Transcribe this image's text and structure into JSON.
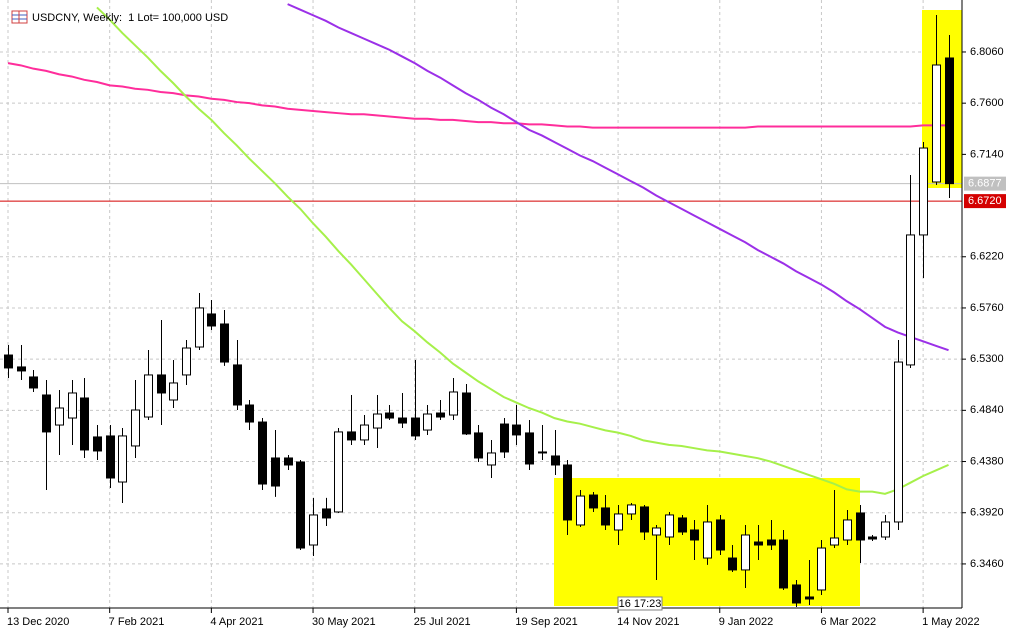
{
  "chart_data": {
    "type": "candlestick",
    "title": "USDCNY, Weekly:  1 Lot= 100,000 USD",
    "timer": "16 17:23",
    "categories": [
      "13 Dec 2020",
      null,
      null,
      null,
      null,
      null,
      null,
      null,
      "7 Feb 2021",
      null,
      null,
      null,
      null,
      null,
      null,
      null,
      "4 Apr 2021",
      null,
      null,
      null,
      null,
      null,
      null,
      null,
      "30 May 2021",
      null,
      null,
      null,
      null,
      null,
      null,
      null,
      "25 Jul 2021",
      null,
      null,
      null,
      null,
      null,
      null,
      null,
      "19 Sep 2021",
      null,
      null,
      null,
      null,
      null,
      null,
      null,
      "14 Nov 2021",
      null,
      null,
      null,
      null,
      null,
      null,
      null,
      "9 Jan 2022",
      null,
      null,
      null,
      null,
      null,
      null,
      null,
      "6 Mar 2022",
      null,
      null,
      null,
      null,
      null,
      null,
      null,
      "1 May 2022",
      null,
      null
    ],
    "open": [
      6.5337,
      6.523,
      6.514,
      6.4978,
      6.4708,
      6.4771,
      6.4951,
      6.4601,
      6.461,
      6.4196,
      6.452,
      6.478,
      6.5158,
      6.4933,
      6.5158,
      6.5409,
      6.5706,
      6.5616,
      6.5248,
      6.4888,
      6.4735,
      6.4412,
      6.4412,
      6.4376,
      6.363,
      6.3954,
      6.3927,
      6.4646,
      6.4574,
      6.4681,
      6.4816,
      6.4771,
      6.4771,
      6.4663,
      6.4816,
      6.4798,
      6.4996,
      6.4637,
      6.4349,
      6.4717,
      6.4708,
      6.4637,
      6.4466,
      6.443,
      6.4349,
      6.381,
      6.4079,
      6.3963,
      6.3765,
      6.3909,
      6.3972,
      6.372,
      6.3702,
      6.3873,
      6.3765,
      6.3513,
      6.3855,
      6.3513,
      6.3406,
      6.3657,
      6.3675,
      6.3675,
      6.3271,
      6.3163,
      6.3226,
      6.363,
      6.3675,
      6.3918,
      6.3702,
      6.3702,
      6.3837,
      6.5248,
      6.6416,
      6.6892,
      6.8006
    ],
    "high": [
      6.5427,
      6.5427,
      6.5203,
      6.5113,
      6.5023,
      6.5113,
      6.5131,
      6.4708,
      6.4708,
      6.4681,
      6.5113,
      6.5382,
      6.5652,
      6.5292,
      6.5472,
      6.5894,
      6.5832,
      6.5742,
      6.5472,
      6.4933,
      6.4771,
      6.4663,
      6.4439,
      6.4394,
      6.4053,
      6.4053,
      6.4681,
      6.4978,
      6.4798,
      6.4978,
      6.4888,
      6.4996,
      6.5292,
      6.4888,
      6.4933,
      6.5131,
      6.5077,
      6.4708,
      6.4574,
      6.4771,
      6.4888,
      6.4753,
      6.4708,
      6.4663,
      6.4394,
      6.4124,
      6.4106,
      6.4079,
      6.399,
      6.4008,
      6.399,
      6.381,
      6.3927,
      6.39,
      6.3855,
      6.399,
      6.39,
      6.363,
      6.381,
      6.381,
      6.3855,
      6.3765,
      6.3316,
      6.3495,
      6.3675,
      6.4124,
      6.3945,
      6.399,
      6.372,
      6.39,
      6.5472,
      6.6955,
      6.7251,
      6.8392,
      6.8213
    ],
    "low": [
      6.5131,
      6.5113,
      6.5005,
      6.4124,
      6.4439,
      6.4529,
      6.4412,
      6.4394,
      6.4142,
      6.4008,
      6.4412,
      6.4753,
      6.4708,
      6.4861,
      6.5068,
      6.5382,
      6.5562,
      6.5239,
      6.4843,
      6.4663,
      6.4124,
      6.4062,
      6.4304,
      6.3585,
      6.3531,
      6.3801,
      6.3918,
      6.4529,
      6.4529,
      6.4502,
      6.4753,
      6.4681,
      6.4574,
      6.4619,
      6.4753,
      6.4753,
      6.4619,
      6.4376,
      6.4232,
      6.4412,
      6.4529,
      6.4304,
      6.4394,
      6.4259,
      6.372,
      6.3792,
      6.3927,
      6.3765,
      6.363,
      6.3855,
      6.3675,
      6.3316,
      6.363,
      6.372,
      6.3495,
      6.3451,
      6.354,
      6.3388,
      6.3244,
      6.3495,
      6.3585,
      6.3226,
      6.3073,
      6.3091,
      6.3181,
      6.3603,
      6.363,
      6.3468,
      6.3666,
      6.3675,
      6.3765,
      6.5221,
      6.6029,
      6.6865,
      6.6748
    ],
    "close": [
      6.5221,
      6.5194,
      6.5041,
      6.4646,
      6.4861,
      6.4996,
      6.4484,
      6.4475,
      6.4232,
      6.461,
      6.4843,
      6.5158,
      6.4996,
      6.5086,
      6.54,
      6.576,
      6.5598,
      6.5274,
      6.4888,
      6.4735,
      6.4178,
      6.416,
      6.4349,
      6.3603,
      6.39,
      6.3873,
      6.4646,
      6.4574,
      6.4708,
      6.4807,
      6.4771,
      6.4726,
      6.461,
      6.4807,
      6.478,
      6.5005,
      6.4628,
      6.4412,
      6.4457,
      6.4466,
      6.4619,
      6.4358,
      6.4457,
      6.4349,
      6.3855,
      6.407,
      6.3963,
      6.381,
      6.3909,
      6.399,
      6.3747,
      6.3783,
      6.39,
      6.3747,
      6.3675,
      6.3837,
      6.3585,
      6.3406,
      6.372,
      6.363,
      6.363,
      6.3244,
      6.3109,
      6.3145,
      6.3603,
      6.3693,
      6.3855,
      6.3675,
      6.3684,
      6.3837,
      6.5274,
      6.6416,
      6.7197,
      6.7943,
      6.6877
    ],
    "up_color": "#ffffff",
    "down_color": "#000000",
    "moving_averages": [
      {
        "color": "#ff2d9b",
        "values": [
          6.796,
          6.794,
          6.791,
          6.789,
          6.786,
          6.784,
          6.781,
          6.779,
          6.776,
          6.775,
          6.773,
          6.772,
          6.77,
          6.769,
          6.767,
          6.766,
          6.764,
          6.763,
          6.761,
          6.76,
          6.758,
          6.757,
          6.755,
          6.754,
          6.753,
          6.752,
          6.751,
          6.75,
          6.75,
          6.749,
          6.748,
          6.747,
          6.746,
          6.746,
          6.745,
          6.745,
          6.744,
          6.743,
          6.743,
          6.742,
          6.742,
          6.741,
          6.741,
          6.74,
          6.739,
          6.739,
          6.738,
          6.738,
          6.738,
          6.738,
          6.738,
          6.738,
          6.738,
          6.738,
          6.738,
          6.738,
          6.738,
          6.738,
          6.738,
          6.739,
          6.739,
          6.739,
          6.739,
          6.739,
          6.739,
          6.739,
          6.739,
          6.739,
          6.739,
          6.739,
          6.739,
          6.739,
          6.74,
          6.74,
          6.74
        ]
      },
      {
        "color": "#9b30e8",
        "values": [
          null,
          null,
          null,
          null,
          null,
          null,
          null,
          null,
          null,
          null,
          null,
          null,
          null,
          null,
          null,
          null,
          null,
          null,
          null,
          null,
          null,
          null,
          6.849,
          6.844,
          6.839,
          6.834,
          6.828,
          6.823,
          6.818,
          6.813,
          6.808,
          6.802,
          6.796,
          6.789,
          6.783,
          6.776,
          6.769,
          6.763,
          6.756,
          6.75,
          6.743,
          6.736,
          6.731,
          6.725,
          6.719,
          6.713,
          6.708,
          6.702,
          6.696,
          6.69,
          6.684,
          6.677,
          6.671,
          6.665,
          6.659,
          6.653,
          6.647,
          6.641,
          6.635,
          6.628,
          6.622,
          6.616,
          6.609,
          6.603,
          6.597,
          6.59,
          6.582,
          6.575,
          6.567,
          6.559,
          6.554,
          6.55,
          6.546,
          6.542,
          6.538
        ]
      },
      {
        "color": "#a6f04a",
        "values": [
          null,
          null,
          null,
          null,
          null,
          null,
          null,
          6.846,
          6.835,
          6.823,
          6.812,
          6.801,
          6.789,
          6.778,
          6.766,
          6.755,
          6.745,
          6.733,
          6.722,
          6.71,
          6.699,
          6.688,
          6.676,
          6.665,
          6.652,
          6.64,
          6.627,
          6.615,
          6.602,
          6.589,
          6.576,
          6.564,
          6.555,
          6.545,
          6.536,
          6.526,
          6.518,
          6.51,
          6.503,
          6.496,
          6.491,
          6.486,
          6.482,
          6.477,
          6.474,
          6.472,
          6.469,
          6.466,
          6.464,
          6.461,
          6.457,
          6.455,
          6.453,
          6.452,
          6.45,
          6.448,
          6.447,
          6.445,
          6.443,
          6.441,
          6.438,
          6.434,
          6.43,
          6.426,
          6.422,
          6.418,
          6.413,
          6.411,
          6.411,
          6.409,
          6.413,
          6.419,
          6.425,
          6.43,
          6.435
        ]
      }
    ],
    "levels": [
      {
        "value": 6.6877,
        "label": "6.6877",
        "color": "#c0c0c0"
      },
      {
        "value": 6.672,
        "label": "6.6720",
        "color": "#d40000"
      }
    ],
    "ylim": [
      6.3064,
      6.8527
    ],
    "yticks": [
      {
        "value": 6.806,
        "label": "6.8060"
      },
      {
        "value": 6.76,
        "label": "6.7600"
      },
      {
        "value": 6.714,
        "label": "6.7140"
      },
      {
        "value": 6.622,
        "label": "6.6220"
      },
      {
        "value": 6.576,
        "label": "6.5760"
      },
      {
        "value": 6.53,
        "label": "6.5300"
      },
      {
        "value": 6.484,
        "label": "6.4840"
      },
      {
        "value": 6.438,
        "label": "6.4380"
      },
      {
        "value": 6.392,
        "label": "6.3920"
      },
      {
        "value": 6.346,
        "label": "6.3460"
      }
    ],
    "grid": true
  }
}
